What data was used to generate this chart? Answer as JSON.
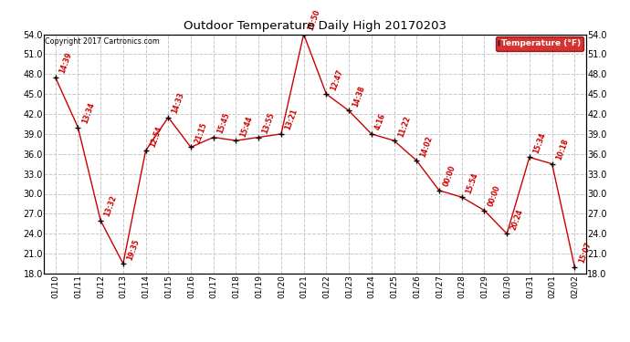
{
  "title": "Outdoor Temperature Daily High 20170203",
  "copyright": "Copyright 2017 Cartronics.com",
  "legend_label": "Temperature (°F)",
  "dates": [
    "01/10",
    "01/11",
    "01/12",
    "01/13",
    "01/14",
    "01/15",
    "01/16",
    "01/17",
    "01/18",
    "01/19",
    "01/20",
    "01/21",
    "01/22",
    "01/23",
    "01/24",
    "01/25",
    "01/26",
    "01/27",
    "01/28",
    "01/29",
    "01/30",
    "01/31",
    "02/01",
    "02/02"
  ],
  "temps": [
    47.5,
    40.0,
    26.0,
    19.5,
    36.5,
    41.5,
    37.0,
    38.5,
    38.0,
    38.5,
    39.0,
    54.0,
    45.0,
    42.5,
    39.0,
    38.0,
    35.0,
    30.5,
    29.5,
    27.5,
    24.0,
    35.5,
    34.5,
    19.0
  ],
  "times": [
    "14:39",
    "13:34",
    "13:32",
    "19:35",
    "12:54",
    "14:33",
    "21:15",
    "15:45",
    "15:44",
    "13:55",
    "13:21",
    "15:50",
    "12:47",
    "14:38",
    "4:16",
    "11:22",
    "14:02",
    "00:00",
    "15:54",
    "00:00",
    "20:24",
    "15:34",
    "10:18",
    "15:07"
  ],
  "line_color": "#cc0000",
  "marker_color": "#000000",
  "legend_bg": "#cc0000",
  "legend_text_color": "#ffffff",
  "background_color": "#ffffff",
  "grid_color": "#c8c8c8",
  "title_color": "#000000",
  "copyright_color": "#000000",
  "annotation_color": "#cc0000",
  "ylim_min": 18.0,
  "ylim_max": 54.0,
  "yticks": [
    18.0,
    21.0,
    24.0,
    27.0,
    30.0,
    33.0,
    36.0,
    39.0,
    42.0,
    45.0,
    48.0,
    51.0,
    54.0
  ]
}
